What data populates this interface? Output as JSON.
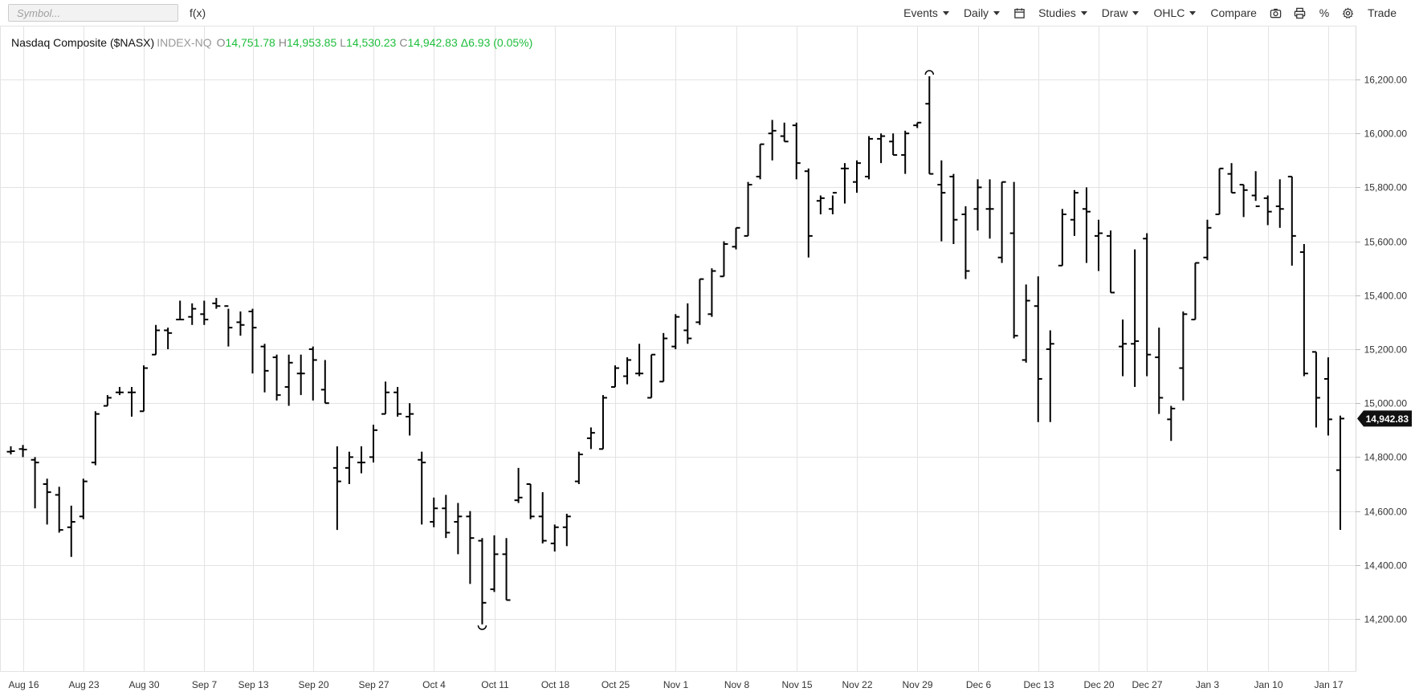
{
  "toolbar": {
    "symbol_placeholder": "Symbol...",
    "fx_label": "f(x)",
    "events_label": "Events",
    "interval_label": "Daily",
    "calendar_icon": "calendar-icon",
    "studies_label": "Studies",
    "draw_label": "Draw",
    "chart_type_label": "OHLC",
    "compare_label": "Compare",
    "camera_icon": "camera-icon",
    "print_icon": "print-icon",
    "percent_label": "%",
    "settings_icon": "gear-icon",
    "trade_label": "Trade"
  },
  "quote": {
    "name": "Nasdaq Composite ($NASX)",
    "exchange": "INDEX-NQ",
    "open_label": "O",
    "open": "14,751.78",
    "high_label": "H",
    "high": "14,953.85",
    "low_label": "L",
    "low": "14,530.23",
    "close_label": "C",
    "close": "14,942.83",
    "change": "Δ6.93 (0.05%)",
    "up_color": "#1ebe3c"
  },
  "last_price_badge": "14,942.83",
  "chart_data": {
    "type": "ohlc",
    "title": "Nasdaq Composite ($NASX)",
    "ylim": [
      14000,
      16400
    ],
    "y_ticks": [
      "14,200.00",
      "14,400.00",
      "14,600.00",
      "14,800.00",
      "15,000.00",
      "15,200.00",
      "15,400.00",
      "15,600.00",
      "15,800.00",
      "16,000.00",
      "16,200.00"
    ],
    "y_tick_values": [
      14200,
      14400,
      14600,
      14800,
      15000,
      15200,
      15400,
      15600,
      15800,
      16000,
      16200
    ],
    "x_tick_labels": [
      "Aug 16",
      "Aug 23",
      "Aug 30",
      "Sep 7",
      "Sep 13",
      "Sep 20",
      "Sep 27",
      "Oct 4",
      "Oct 11",
      "Oct 18",
      "Oct 25",
      "Nov 1",
      "Nov 8",
      "Nov 15",
      "Nov 22",
      "Nov 29",
      "Dec 6",
      "Dec 13",
      "Dec 20",
      "Dec 27",
      "Jan 3",
      "Jan 10",
      "Jan 17"
    ],
    "x_tick_bar_index": [
      1,
      6,
      11,
      16,
      20,
      25,
      30,
      35,
      40,
      45,
      50,
      55,
      60,
      65,
      70,
      75,
      80,
      85,
      90,
      94,
      99,
      104,
      109
    ],
    "high_marker": 16212,
    "low_marker": 14182,
    "bars": [
      {
        "o": 14820,
        "h": 14840,
        "l": 14810,
        "c": 14822
      },
      {
        "o": 14830,
        "h": 14845,
        "l": 14800,
        "c": 14828
      },
      {
        "o": 14790,
        "h": 14800,
        "l": 14610,
        "c": 14780
      },
      {
        "o": 14700,
        "h": 14720,
        "l": 14550,
        "c": 14670
      },
      {
        "o": 14660,
        "h": 14690,
        "l": 14520,
        "c": 14530
      },
      {
        "o": 14540,
        "h": 14620,
        "l": 14430,
        "c": 14560
      },
      {
        "o": 14580,
        "h": 14720,
        "l": 14570,
        "c": 14710
      },
      {
        "o": 14780,
        "h": 14970,
        "l": 14770,
        "c": 14960
      },
      {
        "o": 14990,
        "h": 15030,
        "l": 14990,
        "c": 15020
      },
      {
        "o": 15040,
        "h": 15060,
        "l": 15030,
        "c": 15040
      },
      {
        "o": 15040,
        "h": 15060,
        "l": 14950,
        "c": 15040
      },
      {
        "o": 14970,
        "h": 15140,
        "l": 14970,
        "c": 15130
      },
      {
        "o": 15180,
        "h": 15290,
        "l": 15180,
        "c": 15270
      },
      {
        "o": 15270,
        "h": 15280,
        "l": 15200,
        "c": 15260
      },
      {
        "o": 15310,
        "h": 15380,
        "l": 15310,
        "c": 15310
      },
      {
        "o": 15320,
        "h": 15370,
        "l": 15290,
        "c": 15350
      },
      {
        "o": 15330,
        "h": 15380,
        "l": 15290,
        "c": 15310
      },
      {
        "o": 15370,
        "h": 15390,
        "l": 15350,
        "c": 15360
      },
      {
        "o": 15360,
        "h": 15350,
        "l": 15210,
        "c": 15280
      },
      {
        "o": 15300,
        "h": 15340,
        "l": 15250,
        "c": 15290
      },
      {
        "o": 15340,
        "h": 15350,
        "l": 15110,
        "c": 15280
      },
      {
        "o": 15210,
        "h": 15220,
        "l": 15040,
        "c": 15120
      },
      {
        "o": 15170,
        "h": 15180,
        "l": 15010,
        "c": 15030
      },
      {
        "o": 15060,
        "h": 15180,
        "l": 14990,
        "c": 15150
      },
      {
        "o": 15110,
        "h": 15180,
        "l": 15030,
        "c": 15110
      },
      {
        "o": 15200,
        "h": 15210,
        "l": 15010,
        "c": 15160
      },
      {
        "o": 15050,
        "h": 15160,
        "l": 15000,
        "c": 15000
      },
      {
        "o": 14760,
        "h": 14840,
        "l": 14530,
        "c": 14710
      },
      {
        "o": 14760,
        "h": 14820,
        "l": 14700,
        "c": 14800
      },
      {
        "o": 14780,
        "h": 14840,
        "l": 14740,
        "c": 14780
      },
      {
        "o": 14800,
        "h": 14920,
        "l": 14780,
        "c": 14900
      },
      {
        "o": 14960,
        "h": 15080,
        "l": 14960,
        "c": 15040
      },
      {
        "o": 15040,
        "h": 15060,
        "l": 14950,
        "c": 14960
      },
      {
        "o": 14950,
        "h": 15000,
        "l": 14880,
        "c": 14960
      },
      {
        "o": 14790,
        "h": 14820,
        "l": 14550,
        "c": 14780
      },
      {
        "o": 14560,
        "h": 14650,
        "l": 14540,
        "c": 14610
      },
      {
        "o": 14610,
        "h": 14660,
        "l": 14500,
        "c": 14520
      },
      {
        "o": 14560,
        "h": 14630,
        "l": 14440,
        "c": 14580
      },
      {
        "o": 14580,
        "h": 14600,
        "l": 14330,
        "c": 14500
      },
      {
        "o": 14490,
        "h": 14500,
        "l": 14180,
        "c": 14260
      },
      {
        "o": 14310,
        "h": 14510,
        "l": 14300,
        "c": 14440
      },
      {
        "o": 14440,
        "h": 14500,
        "l": 14270,
        "c": 14270
      },
      {
        "o": 14640,
        "h": 14760,
        "l": 14630,
        "c": 14650
      },
      {
        "o": 14700,
        "h": 14700,
        "l": 14570,
        "c": 14580
      },
      {
        "o": 14580,
        "h": 14670,
        "l": 14480,
        "c": 14490
      },
      {
        "o": 14480,
        "h": 14550,
        "l": 14450,
        "c": 14540
      },
      {
        "o": 14540,
        "h": 14590,
        "l": 14470,
        "c": 14580
      },
      {
        "o": 14710,
        "h": 14820,
        "l": 14700,
        "c": 14810
      },
      {
        "o": 14870,
        "h": 14910,
        "l": 14830,
        "c": 14890
      },
      {
        "o": 14830,
        "h": 15030,
        "l": 14830,
        "c": 15020
      },
      {
        "o": 15060,
        "h": 15140,
        "l": 15060,
        "c": 15130
      },
      {
        "o": 15100,
        "h": 15170,
        "l": 15070,
        "c": 15160
      },
      {
        "o": 15110,
        "h": 15220,
        "l": 15100,
        "c": 15110
      },
      {
        "o": 15020,
        "h": 15180,
        "l": 15020,
        "c": 15180
      },
      {
        "o": 15080,
        "h": 15260,
        "l": 15080,
        "c": 15240
      },
      {
        "o": 15210,
        "h": 15330,
        "l": 15200,
        "c": 15320
      },
      {
        "o": 15270,
        "h": 15370,
        "l": 15220,
        "c": 15240
      },
      {
        "o": 15300,
        "h": 15460,
        "l": 15290,
        "c": 15460
      },
      {
        "o": 15330,
        "h": 15500,
        "l": 15320,
        "c": 15490
      },
      {
        "o": 15470,
        "h": 15600,
        "l": 15470,
        "c": 15590
      },
      {
        "o": 15580,
        "h": 15650,
        "l": 15570,
        "c": 15650
      },
      {
        "o": 15620,
        "h": 15820,
        "l": 15620,
        "c": 15810
      },
      {
        "o": 15840,
        "h": 15960,
        "l": 15830,
        "c": 15960
      },
      {
        "o": 16000,
        "h": 16050,
        "l": 15900,
        "c": 16010
      },
      {
        "o": 15990,
        "h": 16040,
        "l": 15970,
        "c": 15970
      },
      {
        "o": 16030,
        "h": 16040,
        "l": 15830,
        "c": 15890
      },
      {
        "o": 15860,
        "h": 15870,
        "l": 15540,
        "c": 15620
      },
      {
        "o": 15750,
        "h": 15770,
        "l": 15700,
        "c": 15760
      },
      {
        "o": 15720,
        "h": 15770,
        "l": 15700,
        "c": 15780
      },
      {
        "o": 15870,
        "h": 15890,
        "l": 15740,
        "c": 15870
      },
      {
        "o": 15820,
        "h": 15900,
        "l": 15780,
        "c": 15890
      },
      {
        "o": 15840,
        "h": 15990,
        "l": 15830,
        "c": 15980
      },
      {
        "o": 15980,
        "h": 16000,
        "l": 15890,
        "c": 15990
      },
      {
        "o": 15970,
        "h": 16000,
        "l": 15920,
        "c": 15920
      },
      {
        "o": 15920,
        "h": 16010,
        "l": 15850,
        "c": 16000
      },
      {
        "o": 16030,
        "h": 16040,
        "l": 16020,
        "c": 16040
      },
      {
        "o": 16110,
        "h": 16212,
        "l": 15850,
        "c": 15850
      },
      {
        "o": 15810,
        "h": 15900,
        "l": 15600,
        "c": 15780
      },
      {
        "o": 15840,
        "h": 15850,
        "l": 15590,
        "c": 15680
      },
      {
        "o": 15700,
        "h": 15730,
        "l": 15460,
        "c": 15490
      },
      {
        "o": 15720,
        "h": 15830,
        "l": 15640,
        "c": 15800
      },
      {
        "o": 15720,
        "h": 15830,
        "l": 15610,
        "c": 15720
      },
      {
        "o": 15540,
        "h": 15820,
        "l": 15520,
        "c": 15820
      },
      {
        "o": 15630,
        "h": 15820,
        "l": 15240,
        "c": 15250
      },
      {
        "o": 15160,
        "h": 15440,
        "l": 15150,
        "c": 15380
      },
      {
        "o": 15360,
        "h": 15470,
        "l": 14930,
        "c": 15090
      },
      {
        "o": 15200,
        "h": 15270,
        "l": 14930,
        "c": 15220
      },
      {
        "o": 15510,
        "h": 15720,
        "l": 15510,
        "c": 15700
      },
      {
        "o": 15680,
        "h": 15790,
        "l": 15620,
        "c": 15780
      },
      {
        "o": 15720,
        "h": 15800,
        "l": 15520,
        "c": 15710
      },
      {
        "o": 15620,
        "h": 15680,
        "l": 15490,
        "c": 15630
      },
      {
        "o": 15620,
        "h": 15640,
        "l": 15410,
        "c": 15410
      },
      {
        "o": 15210,
        "h": 15310,
        "l": 15100,
        "c": 15220
      },
      {
        "o": 15220,
        "h": 15570,
        "l": 15060,
        "c": 15230
      },
      {
        "o": 15610,
        "h": 15630,
        "l": 15100,
        "c": 15180
      },
      {
        "o": 15170,
        "h": 15280,
        "l": 14960,
        "c": 15020
      },
      {
        "o": 14940,
        "h": 14990,
        "l": 14860,
        "c": 14980
      },
      {
        "o": 15130,
        "h": 15340,
        "l": 15010,
        "c": 15330
      },
      {
        "o": 15310,
        "h": 15520,
        "l": 15310,
        "c": 15520
      },
      {
        "o": 15540,
        "h": 15680,
        "l": 15530,
        "c": 15650
      },
      {
        "o": 15700,
        "h": 15870,
        "l": 15700,
        "c": 15870
      },
      {
        "o": 15850,
        "h": 15890,
        "l": 15780,
        "c": 15780
      },
      {
        "o": 15810,
        "h": 15810,
        "l": 15690,
        "c": 15790
      },
      {
        "o": 15770,
        "h": 15860,
        "l": 15750,
        "c": 15730
      },
      {
        "o": 15760,
        "h": 15770,
        "l": 15660,
        "c": 15710
      },
      {
        "o": 15730,
        "h": 15830,
        "l": 15650,
        "c": 15720
      },
      {
        "o": 15840,
        "h": 15840,
        "l": 15510,
        "c": 15620
      },
      {
        "o": 15560,
        "h": 15590,
        "l": 15100,
        "c": 15110
      },
      {
        "o": 15190,
        "h": 15190,
        "l": 14910,
        "c": 15020
      },
      {
        "o": 15090,
        "h": 15170,
        "l": 14880,
        "c": 14940
      },
      {
        "o": 14751.78,
        "h": 14953.85,
        "l": 14530.23,
        "c": 14942.83
      }
    ]
  }
}
